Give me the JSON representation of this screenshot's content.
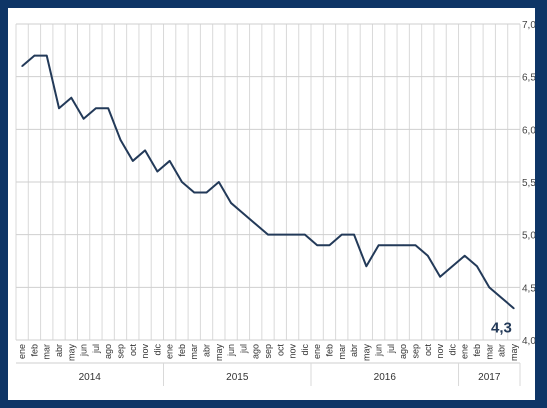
{
  "chart_data": {
    "type": "line",
    "ylim": [
      4.0,
      7.0
    ],
    "yticks": [
      "4,0",
      "4,5",
      "5,0",
      "5,5",
      "6,0",
      "6,5",
      "7,0"
    ],
    "ytick_values": [
      4.0,
      4.5,
      5.0,
      5.5,
      6.0,
      6.5,
      7.0
    ],
    "grid": true,
    "categories": [
      "ene",
      "feb",
      "mar",
      "abr",
      "may",
      "jun",
      "jul",
      "ago",
      "sep",
      "oct",
      "nov",
      "dic",
      "ene",
      "feb",
      "mar",
      "abr",
      "may",
      "jun",
      "jul",
      "ago",
      "sep",
      "oct",
      "nov",
      "dic",
      "ene",
      "feb",
      "mar",
      "abr",
      "may",
      "jun",
      "jul",
      "ago",
      "sep",
      "oct",
      "nov",
      "dic",
      "ene",
      "feb",
      "mar",
      "abr",
      "may"
    ],
    "years": [
      {
        "label": "2014",
        "start": 0,
        "end": 11
      },
      {
        "label": "2015",
        "start": 12,
        "end": 23
      },
      {
        "label": "2016",
        "start": 24,
        "end": 35
      },
      {
        "label": "2017",
        "start": 36,
        "end": 40
      }
    ],
    "series": [
      {
        "color": "#233a59",
        "values": [
          6.6,
          6.7,
          6.7,
          6.2,
          6.3,
          6.1,
          6.2,
          6.2,
          5.9,
          5.7,
          5.8,
          5.6,
          5.7,
          5.5,
          5.4,
          5.4,
          5.5,
          5.3,
          5.2,
          5.1,
          5.0,
          5.0,
          5.0,
          5.0,
          4.9,
          4.9,
          5.0,
          5.0,
          4.7,
          4.9,
          4.9,
          4.9,
          4.9,
          4.8,
          4.6,
          4.7,
          4.8,
          4.7,
          4.5,
          4.4,
          4.3
        ]
      }
    ],
    "end_label": "4,3"
  }
}
